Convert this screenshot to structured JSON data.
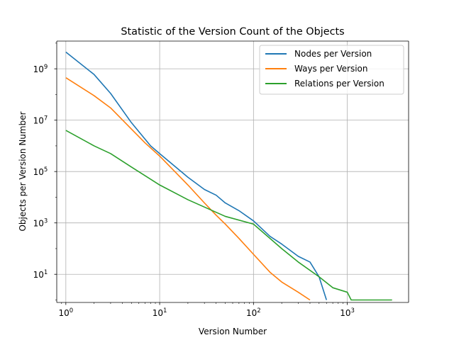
{
  "chart_data": {
    "type": "line",
    "title": "Statistic of the Version Count of the Objects",
    "xlabel": "Version Number",
    "ylabel": "Objects per Version Number",
    "xscale": "log",
    "yscale": "log",
    "xlim": [
      0.8,
      4500
    ],
    "ylim": [
      0.8,
      12000000000
    ],
    "grid": true,
    "legend_position": "top-right",
    "x_ticks": [
      {
        "base": "10",
        "exp": "0",
        "value": 1
      },
      {
        "base": "10",
        "exp": "1",
        "value": 10
      },
      {
        "base": "10",
        "exp": "2",
        "value": 100
      },
      {
        "base": "10",
        "exp": "3",
        "value": 1000
      }
    ],
    "y_ticks": [
      {
        "base": "10",
        "exp": "1",
        "value": 10
      },
      {
        "base": "10",
        "exp": "3",
        "value": 1000
      },
      {
        "base": "10",
        "exp": "5",
        "value": 100000
      },
      {
        "base": "10",
        "exp": "7",
        "value": 10000000
      },
      {
        "base": "10",
        "exp": "9",
        "value": 1000000000
      }
    ],
    "series": [
      {
        "name": "Nodes per Version",
        "color": "#1f77b4",
        "x": [
          1,
          2,
          3,
          5,
          8,
          10,
          20,
          30,
          40,
          50,
          70,
          100,
          150,
          200,
          300,
          400,
          500,
          600
        ],
        "y": [
          4500000000,
          600000000,
          110000000,
          8000000,
          1000000,
          500000,
          60000,
          20000,
          12000,
          6000,
          3000,
          1200,
          300,
          150,
          50,
          30,
          8,
          1
        ]
      },
      {
        "name": "Ways per Version",
        "color": "#ff7f0e",
        "x": [
          1,
          2,
          3,
          5,
          7,
          10,
          20,
          30,
          40,
          50,
          70,
          100,
          150,
          200,
          300,
          400
        ],
        "y": [
          450000000,
          90000000,
          30000000,
          4500000,
          1300000,
          400000,
          30000,
          6000,
          2000,
          900,
          250,
          60,
          12,
          5,
          2,
          1
        ]
      },
      {
        "name": "Relations per Version",
        "color": "#2ca02c",
        "x": [
          1,
          2,
          3,
          5,
          10,
          20,
          50,
          100,
          200,
          300,
          500,
          700,
          1000,
          1100,
          2000,
          3000
        ],
        "y": [
          4000000,
          1000000,
          500000,
          150000,
          30000,
          8000,
          1800,
          900,
          100,
          30,
          8,
          3,
          2,
          1,
          1,
          1
        ]
      }
    ]
  }
}
